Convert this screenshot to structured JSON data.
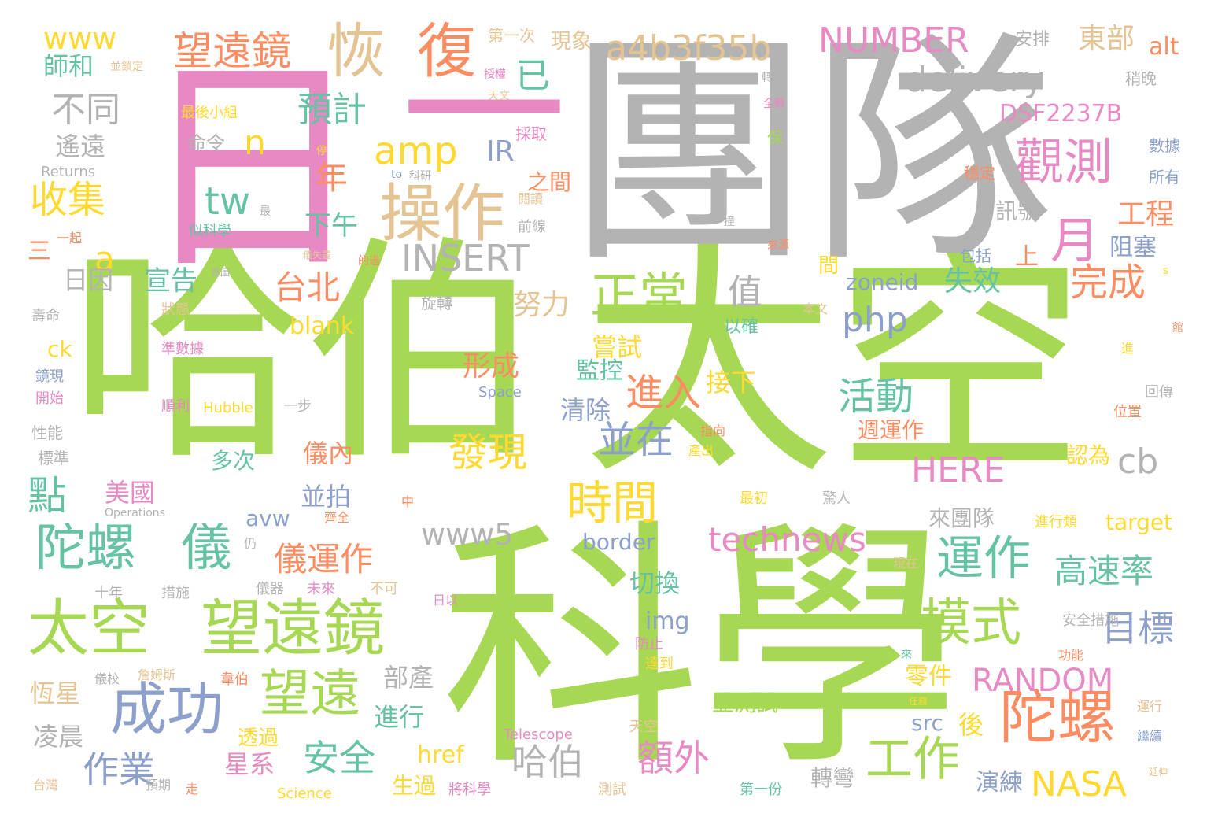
{
  "palette": {
    "green": "#a6d854",
    "gray": "#b3b3b3",
    "pink": "#e78ac3",
    "orange": "#fc8d62",
    "teal": "#66c2a5",
    "blue": "#8da0cb",
    "yellow": "#ffd92f",
    "tan": "#e5c494"
  },
  "words": [
    {
      "text": "哈伯",
      "color": "green",
      "weight": 1.0
    },
    {
      "text": "太空",
      "color": "green",
      "weight": 1.0
    },
    {
      "text": "科學",
      "color": "green",
      "weight": 1.0
    },
    {
      "text": "團隊",
      "color": "gray",
      "weight": 0.9
    },
    {
      "text": "日",
      "color": "pink",
      "weight": 0.85
    },
    {
      "text": "一",
      "color": "pink",
      "weight": 0.7
    },
    {
      "text": "操作",
      "color": "tan",
      "weight": 0.35
    },
    {
      "text": "恢",
      "color": "tan",
      "weight": 0.3
    },
    {
      "text": "復",
      "color": "orange",
      "weight": 0.3
    },
    {
      "text": "望遠鏡",
      "color": "green",
      "weight": 0.3
    },
    {
      "text": "太空",
      "color": "green",
      "weight": 0.3
    },
    {
      "text": "陀螺",
      "color": "orange",
      "weight": 0.28
    },
    {
      "text": "陀螺",
      "color": "teal",
      "weight": 0.25
    },
    {
      "text": "儀",
      "color": "teal",
      "weight": 0.25
    },
    {
      "text": "成功",
      "color": "blue",
      "weight": 0.25
    },
    {
      "text": "望遠",
      "color": "green",
      "weight": 0.22
    },
    {
      "text": "模式",
      "color": "green",
      "weight": 0.22
    },
    {
      "text": "觀測",
      "color": "pink",
      "weight": 0.2
    },
    {
      "text": "月",
      "color": "pink",
      "weight": 0.2
    },
    {
      "text": "正常",
      "color": "green",
      "weight": 0.2
    },
    {
      "text": "運作",
      "color": "teal",
      "weight": 0.18
    },
    {
      "text": "工作",
      "color": "green",
      "weight": 0.18
    },
    {
      "text": "時間",
      "color": "yellow",
      "weight": 0.17
    },
    {
      "text": "望遠鏡",
      "color": "orange",
      "weight": 0.15
    },
    {
      "text": "a4b3f35b",
      "color": "tan",
      "weight": 0.15
    },
    {
      "text": "NUMBER",
      "color": "pink",
      "weight": 0.15
    },
    {
      "text": "delivery",
      "color": "gray",
      "weight": 0.15
    },
    {
      "text": "INSERT",
      "color": "gray",
      "weight": 0.15
    },
    {
      "text": "amp",
      "color": "yellow",
      "weight": 0.15
    },
    {
      "text": "technews",
      "color": "pink",
      "weight": 0.14
    },
    {
      "text": "RANDOM",
      "color": "pink",
      "weight": 0.14
    },
    {
      "text": "NASA",
      "color": "yellow",
      "weight": 0.14
    },
    {
      "text": "HERE",
      "color": "pink",
      "weight": 0.13
    },
    {
      "text": "www5",
      "color": "gray",
      "weight": 0.13
    },
    {
      "text": "www",
      "color": "yellow",
      "weight": 0.12
    },
    {
      "text": "收集",
      "color": "yellow",
      "weight": 0.12
    },
    {
      "text": "不同",
      "color": "gray",
      "weight": 0.12
    },
    {
      "text": "預計",
      "color": "teal",
      "weight": 0.12
    },
    {
      "text": "已",
      "color": "teal",
      "weight": 0.12
    },
    {
      "text": "東部",
      "color": "tan",
      "weight": 0.1
    },
    {
      "text": "DSF2237B",
      "color": "pink",
      "weight": 0.1
    },
    {
      "text": "師和",
      "color": "teal",
      "weight": 0.1
    },
    {
      "text": "遙遠",
      "color": "gray",
      "weight": 0.1
    },
    {
      "text": "n",
      "color": "yellow",
      "weight": 0.1
    },
    {
      "text": "tw",
      "color": "teal",
      "weight": 0.12
    },
    {
      "text": "a",
      "color": "yellow",
      "weight": 0.1
    },
    {
      "text": "IR",
      "color": "blue",
      "weight": 0.1
    },
    {
      "text": "年",
      "color": "orange",
      "weight": 0.1
    },
    {
      "text": "工程",
      "color": "orange",
      "weight": 0.1
    },
    {
      "text": "台北",
      "color": "orange",
      "weight": 0.12
    },
    {
      "text": "php",
      "color": "blue",
      "weight": 0.12
    },
    {
      "text": "值",
      "color": "gray",
      "weight": 0.12
    },
    {
      "text": "努力",
      "color": "tan",
      "weight": 0.1
    },
    {
      "text": "完成",
      "color": "orange",
      "weight": 0.12
    },
    {
      "text": "活動",
      "color": "teal",
      "weight": 0.12
    },
    {
      "text": "進入",
      "color": "orange",
      "weight": 0.12
    },
    {
      "text": "發現",
      "color": "yellow",
      "weight": 0.12
    },
    {
      "text": "並在",
      "color": "blue",
      "weight": 0.12
    },
    {
      "text": "cb",
      "color": "gray",
      "weight": 0.12
    },
    {
      "text": "點",
      "color": "teal",
      "weight": 0.12
    },
    {
      "text": "額外",
      "color": "pink",
      "weight": 0.12
    },
    {
      "text": "安全",
      "color": "teal",
      "weight": 0.12
    },
    {
      "text": "哈伯",
      "color": "gray",
      "weight": 0.12
    },
    {
      "text": "作業",
      "color": "blue",
      "weight": 0.12
    },
    {
      "text": "目標",
      "color": "blue",
      "weight": 0.12
    },
    {
      "text": "高速率",
      "color": "teal",
      "weight": 0.11
    },
    {
      "text": "儀運作",
      "color": "orange",
      "weight": 0.11
    },
    {
      "text": "形成",
      "color": "orange",
      "weight": 0.1
    },
    {
      "text": "失效",
      "color": "teal",
      "weight": 0.1
    },
    {
      "text": "zoneid",
      "color": "blue",
      "weight": 0.1
    },
    {
      "text": "阻塞",
      "color": "blue",
      "weight": 0.09
    },
    {
      "text": "訊號",
      "color": "gray",
      "weight": 0.09
    },
    {
      "text": "上",
      "color": "orange",
      "weight": 0.09
    },
    {
      "text": "下午",
      "color": "teal",
      "weight": 0.09
    },
    {
      "text": "之間",
      "color": "orange",
      "weight": 0.09
    },
    {
      "text": "日因",
      "color": "gray",
      "weight": 0.08
    },
    {
      "text": "宣告",
      "color": "teal",
      "weight": 0.08
    },
    {
      "text": "blank",
      "color": "yellow",
      "weight": 0.08
    },
    {
      "text": "ck",
      "color": "yellow",
      "weight": 0.08
    },
    {
      "text": "嘗試",
      "color": "yellow",
      "weight": 0.08
    },
    {
      "text": "接下",
      "color": "yellow",
      "weight": 0.08
    },
    {
      "text": "監控",
      "color": "teal",
      "weight": 0.08
    },
    {
      "text": "清除",
      "color": "blue",
      "weight": 0.08
    },
    {
      "text": "多次",
      "color": "teal",
      "weight": 0.08
    },
    {
      "text": "儀內",
      "color": "orange",
      "weight": 0.08
    },
    {
      "text": "並拍",
      "color": "blue",
      "weight": 0.08
    },
    {
      "text": "美國",
      "color": "pink",
      "weight": 0.08
    },
    {
      "text": "avw",
      "color": "blue",
      "weight": 0.08
    },
    {
      "text": "border",
      "color": "blue",
      "weight": 0.08
    },
    {
      "text": "切換",
      "color": "teal",
      "weight": 0.08
    },
    {
      "text": "img",
      "color": "blue",
      "weight": 0.08
    },
    {
      "text": "部產",
      "color": "gray",
      "weight": 0.08
    },
    {
      "text": "恆星",
      "color": "tan",
      "weight": 0.08
    },
    {
      "text": "凌晨",
      "color": "gray",
      "weight": 0.08
    },
    {
      "text": "進行",
      "color": "teal",
      "weight": 0.08
    },
    {
      "text": "星系",
      "color": "pink",
      "weight": 0.08
    },
    {
      "text": "href",
      "color": "yellow",
      "weight": 0.08
    },
    {
      "text": "生過",
      "color": "yellow",
      "weight": 0.07
    },
    {
      "text": "透過",
      "color": "yellow",
      "weight": 0.07
    },
    {
      "text": "src",
      "color": "blue",
      "weight": 0.08
    },
    {
      "text": "後",
      "color": "yellow",
      "weight": 0.08
    },
    {
      "text": "演練",
      "color": "blue",
      "weight": 0.08
    },
    {
      "text": "零件",
      "color": "yellow",
      "weight": 0.08
    },
    {
      "text": "轉彎",
      "color": "gray",
      "weight": 0.08
    },
    {
      "text": "認為",
      "color": "yellow",
      "weight": 0.07
    },
    {
      "text": "週運作",
      "color": "orange",
      "weight": 0.07
    },
    {
      "text": "來團隊",
      "color": "gray",
      "weight": 0.07
    },
    {
      "text": "target",
      "color": "yellow",
      "weight": 0.07
    },
    {
      "text": "並測試",
      "color": "green",
      "weight": 0.07
    },
    {
      "text": "命令",
      "color": "gray",
      "weight": 0.06
    },
    {
      "text": "最後小組",
      "color": "yellow",
      "weight": 0.05
    },
    {
      "text": "現象",
      "color": "tan",
      "weight": 0.06
    },
    {
      "text": "第一次",
      "color": "tan",
      "weight": 0.05
    },
    {
      "text": "安排",
      "color": "gray",
      "weight": 0.05
    },
    {
      "text": "alt",
      "color": "orange",
      "weight": 0.06
    },
    {
      "text": "稍晚",
      "color": "gray",
      "weight": 0.05
    },
    {
      "text": "數據",
      "color": "blue",
      "weight": 0.05
    },
    {
      "text": "所有",
      "color": "blue",
      "weight": 0.05
    },
    {
      "text": "穩定",
      "color": "orange",
      "weight": 0.05
    },
    {
      "text": "包括",
      "color": "blue",
      "weight": 0.05
    },
    {
      "text": "間",
      "color": "yellow",
      "weight": 0.05
    },
    {
      "text": "保",
      "color": "green",
      "weight": 0.05
    },
    {
      "text": "採取",
      "color": "pink",
      "weight": 0.05
    },
    {
      "text": "閱讀",
      "color": "tan",
      "weight": 0.04
    },
    {
      "text": "前線",
      "color": "gray",
      "weight": 0.04
    },
    {
      "text": "旋轉",
      "color": "gray",
      "weight": 0.05
    },
    {
      "text": "以確",
      "color": "teal",
      "weight": 0.05
    },
    {
      "text": "本文",
      "color": "tan",
      "weight": 0.04
    },
    {
      "text": "回傳",
      "color": "gray",
      "weight": 0.04
    },
    {
      "text": "位置",
      "color": "orange",
      "weight": 0.04
    },
    {
      "text": "Space",
      "color": "blue",
      "weight": 0.04
    },
    {
      "text": "Hubble",
      "color": "yellow",
      "weight": 0.04
    },
    {
      "text": "一步",
      "color": "gray",
      "weight": 0.04
    },
    {
      "text": "順利",
      "color": "pink",
      "weight": 0.04
    },
    {
      "text": "開始",
      "color": "pink",
      "weight": 0.04
    },
    {
      "text": "鏡現",
      "color": "blue",
      "weight": 0.04
    },
    {
      "text": "準數據",
      "color": "pink",
      "weight": 0.04
    },
    {
      "text": "狀態",
      "color": "tan",
      "weight": 0.04
    },
    {
      "text": "壽命",
      "color": "gray",
      "weight": 0.04
    },
    {
      "text": "性能",
      "color": "gray",
      "weight": 0.05
    },
    {
      "text": "標準",
      "color": "gray",
      "weight": 0.04
    },
    {
      "text": "Returns",
      "color": "gray",
      "weight": 0.04
    },
    {
      "text": "似科學",
      "color": "teal",
      "weight": 0.04
    },
    {
      "text": "一起",
      "color": "orange",
      "weight": 0.04
    },
    {
      "text": "三",
      "color": "orange",
      "weight": 0.05
    },
    {
      "text": "Operations",
      "color": "gray",
      "weight": 0.03
    },
    {
      "text": "十年",
      "color": "gray",
      "weight": 0.04
    },
    {
      "text": "措施",
      "color": "gray",
      "weight": 0.04
    },
    {
      "text": "儀器",
      "color": "gray",
      "weight": 0.04
    },
    {
      "text": "未來",
      "color": "pink",
      "weight": 0.04
    },
    {
      "text": "不可",
      "color": "tan",
      "weight": 0.04
    },
    {
      "text": "日以",
      "color": "pink",
      "weight": 0.04
    },
    {
      "text": "防止",
      "color": "pink",
      "weight": 0.04
    },
    {
      "text": "達到",
      "color": "yellow",
      "weight": 0.04
    },
    {
      "text": "韋伯",
      "color": "orange",
      "weight": 0.04
    },
    {
      "text": "詹姆斯",
      "color": "tan",
      "weight": 0.04
    },
    {
      "text": "儀校",
      "color": "gray",
      "weight": 0.04
    },
    {
      "text": "Telescope",
      "color": "pink",
      "weight": 0.04
    },
    {
      "text": "天空",
      "color": "tan",
      "weight": 0.04
    },
    {
      "text": "測試",
      "color": "tan",
      "weight": 0.04
    },
    {
      "text": "第一份",
      "color": "teal",
      "weight": 0.04
    },
    {
      "text": "將科學",
      "color": "pink",
      "weight": 0.04
    },
    {
      "text": "Science",
      "color": "yellow",
      "weight": 0.04
    },
    {
      "text": "台灣",
      "color": "tan",
      "weight": 0.04
    },
    {
      "text": "預期",
      "color": "gray",
      "weight": 0.04
    },
    {
      "text": "走",
      "color": "orange",
      "weight": 0.04
    },
    {
      "text": "安全措施",
      "color": "gray",
      "weight": 0.04
    },
    {
      "text": "功能",
      "color": "orange",
      "weight": 0.04
    },
    {
      "text": "進行類",
      "color": "yellow",
      "weight": 0.04
    },
    {
      "text": "現在",
      "color": "tan",
      "weight": 0.04
    },
    {
      "text": "最初",
      "color": "yellow",
      "weight": 0.04
    },
    {
      "text": "驚人",
      "color": "gray",
      "weight": 0.04
    },
    {
      "text": "指向",
      "color": "orange",
      "weight": 0.04
    },
    {
      "text": "產出",
      "color": "yellow",
      "weight": 0.04
    },
    {
      "text": "仍",
      "color": "gray",
      "weight": 0.04
    },
    {
      "text": "齊全",
      "color": "orange",
      "weight": 0.03
    },
    {
      "text": "中",
      "color": "orange",
      "weight": 0.03
    },
    {
      "text": "運行",
      "color": "tan",
      "weight": 0.03
    },
    {
      "text": "繼續",
      "color": "blue",
      "weight": 0.03
    },
    {
      "text": "延伸",
      "color": "tan",
      "weight": 0.03
    },
    {
      "text": "任務",
      "color": "yellow",
      "weight": 0.03
    },
    {
      "text": "來",
      "color": "teal",
      "weight": 0.03
    },
    {
      "text": "進",
      "color": "yellow",
      "weight": 0.03
    },
    {
      "text": "館",
      "color": "orange",
      "weight": 0.03
    },
    {
      "text": "s",
      "color": "yellow",
      "weight": 0.03
    },
    {
      "text": "來源",
      "color": "orange",
      "weight": 0.03
    },
    {
      "text": "撞",
      "color": "gray",
      "weight": 0.03
    },
    {
      "text": "全數",
      "color": "pink",
      "weight": 0.03
    },
    {
      "text": "轉載",
      "color": "gray",
      "weight": 0.03
    },
    {
      "text": "授權",
      "color": "pink",
      "weight": 0.03
    },
    {
      "text": "天文",
      "color": "tan",
      "weight": 0.03
    },
    {
      "text": "並鎖定",
      "color": "tan",
      "weight": 0.03
    },
    {
      "text": "停",
      "color": "yellow",
      "weight": 0.03
    },
    {
      "text": "to",
      "color": "blue",
      "weight": 0.03
    },
    {
      "text": "科研",
      "color": "gray",
      "weight": 0.03
    },
    {
      "text": "最",
      "color": "gray",
      "weight": 0.03
    },
    {
      "text": "首圖",
      "color": "gray",
      "weight": 0.03
    },
    {
      "text": "儀失靈",
      "color": "tan",
      "weight": 0.03
    },
    {
      "text": "的過",
      "color": "orange",
      "weight": 0.03
    }
  ]
}
